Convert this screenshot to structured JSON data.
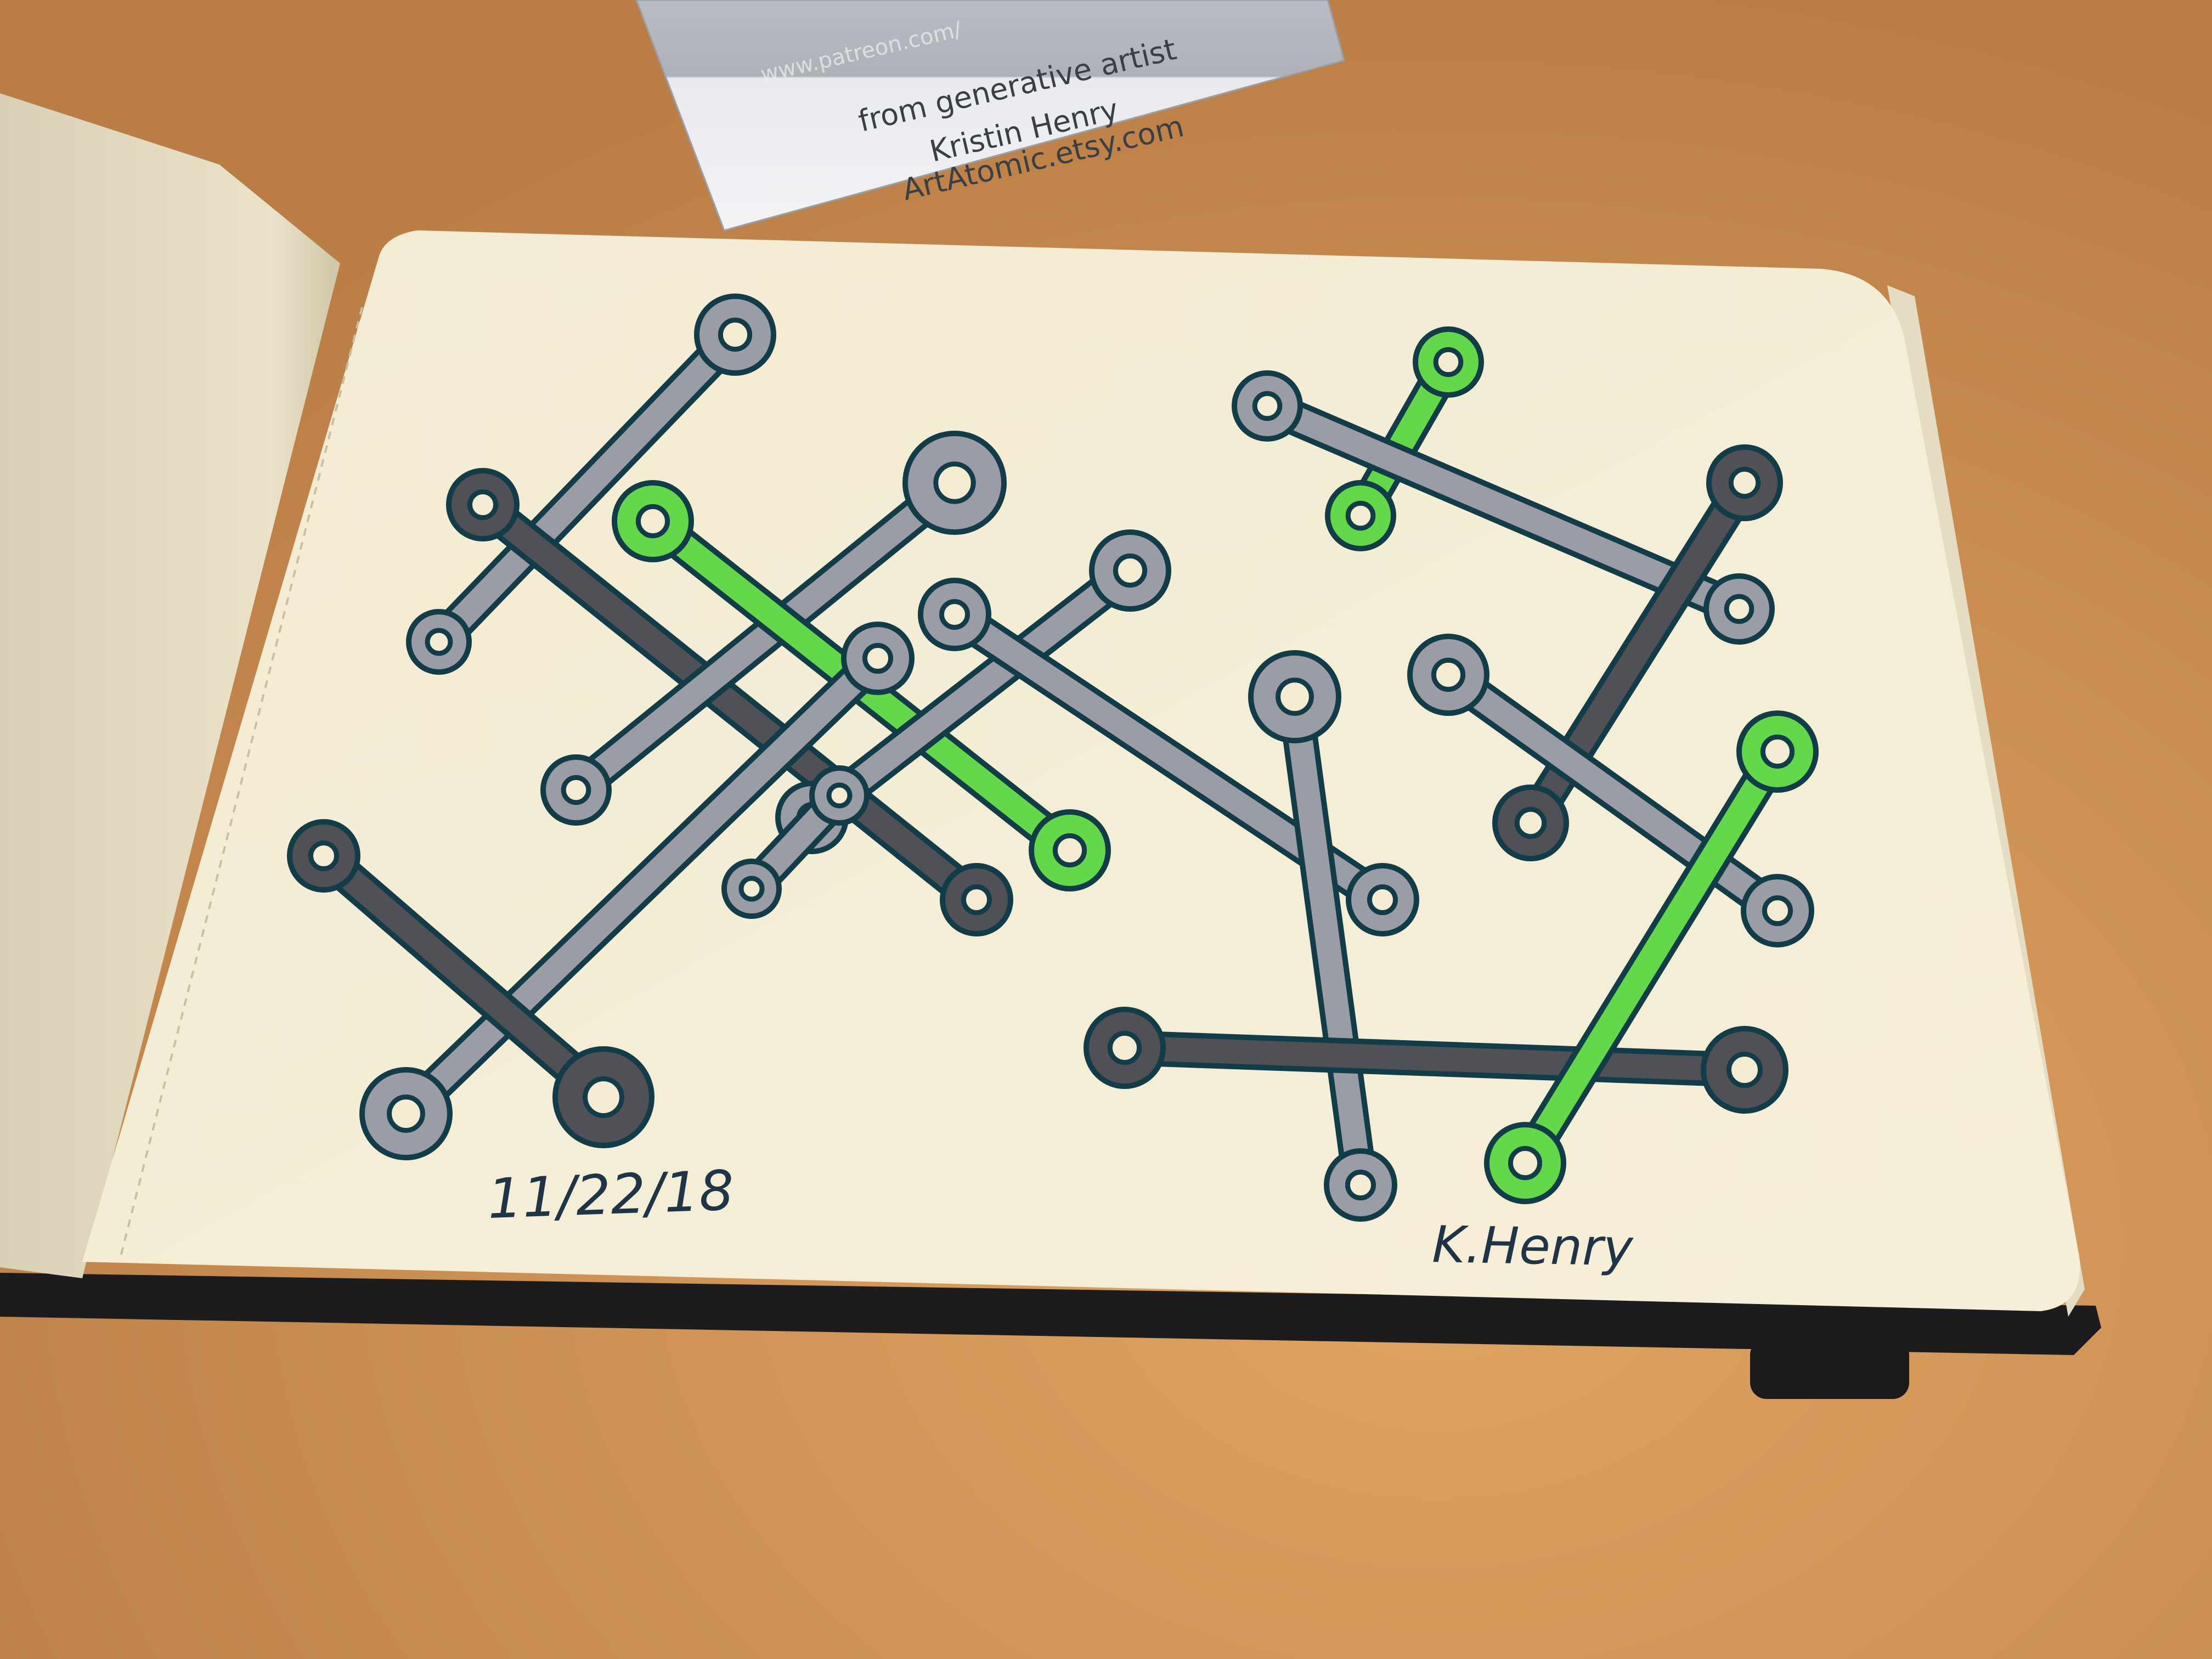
{
  "card": {
    "url_line": "www.patreon.com/",
    "line1": "from generative artist",
    "line2": "Kristin Henry",
    "line3": "ArtAtomic.etsy.com"
  },
  "sketch": {
    "date": "11/22/18",
    "signature": "K.Henry"
  },
  "colors": {
    "table": "#c98f52",
    "paper": "#f3ecd2",
    "ink": "#123c48",
    "gray_light": "#9a9ca6",
    "gray_dark": "#4f5156",
    "green": "#63d84a"
  },
  "molecules": [
    {
      "color": "gray_light"
    },
    {
      "color": "gray_dark"
    },
    {
      "color": "gray_light"
    },
    {
      "color": "green"
    },
    {
      "color": "gray_light"
    },
    {
      "color": "gray_light"
    },
    {
      "color": "gray_light"
    },
    {
      "color": "gray_dark"
    },
    {
      "color": "gray_light"
    },
    {
      "color": "green"
    },
    {
      "color": "gray_light"
    },
    {
      "color": "gray_dark"
    },
    {
      "color": "gray_light"
    },
    {
      "color": "gray_dark"
    },
    {
      "color": "green"
    },
    {
      "color": "gray_light"
    }
  ]
}
